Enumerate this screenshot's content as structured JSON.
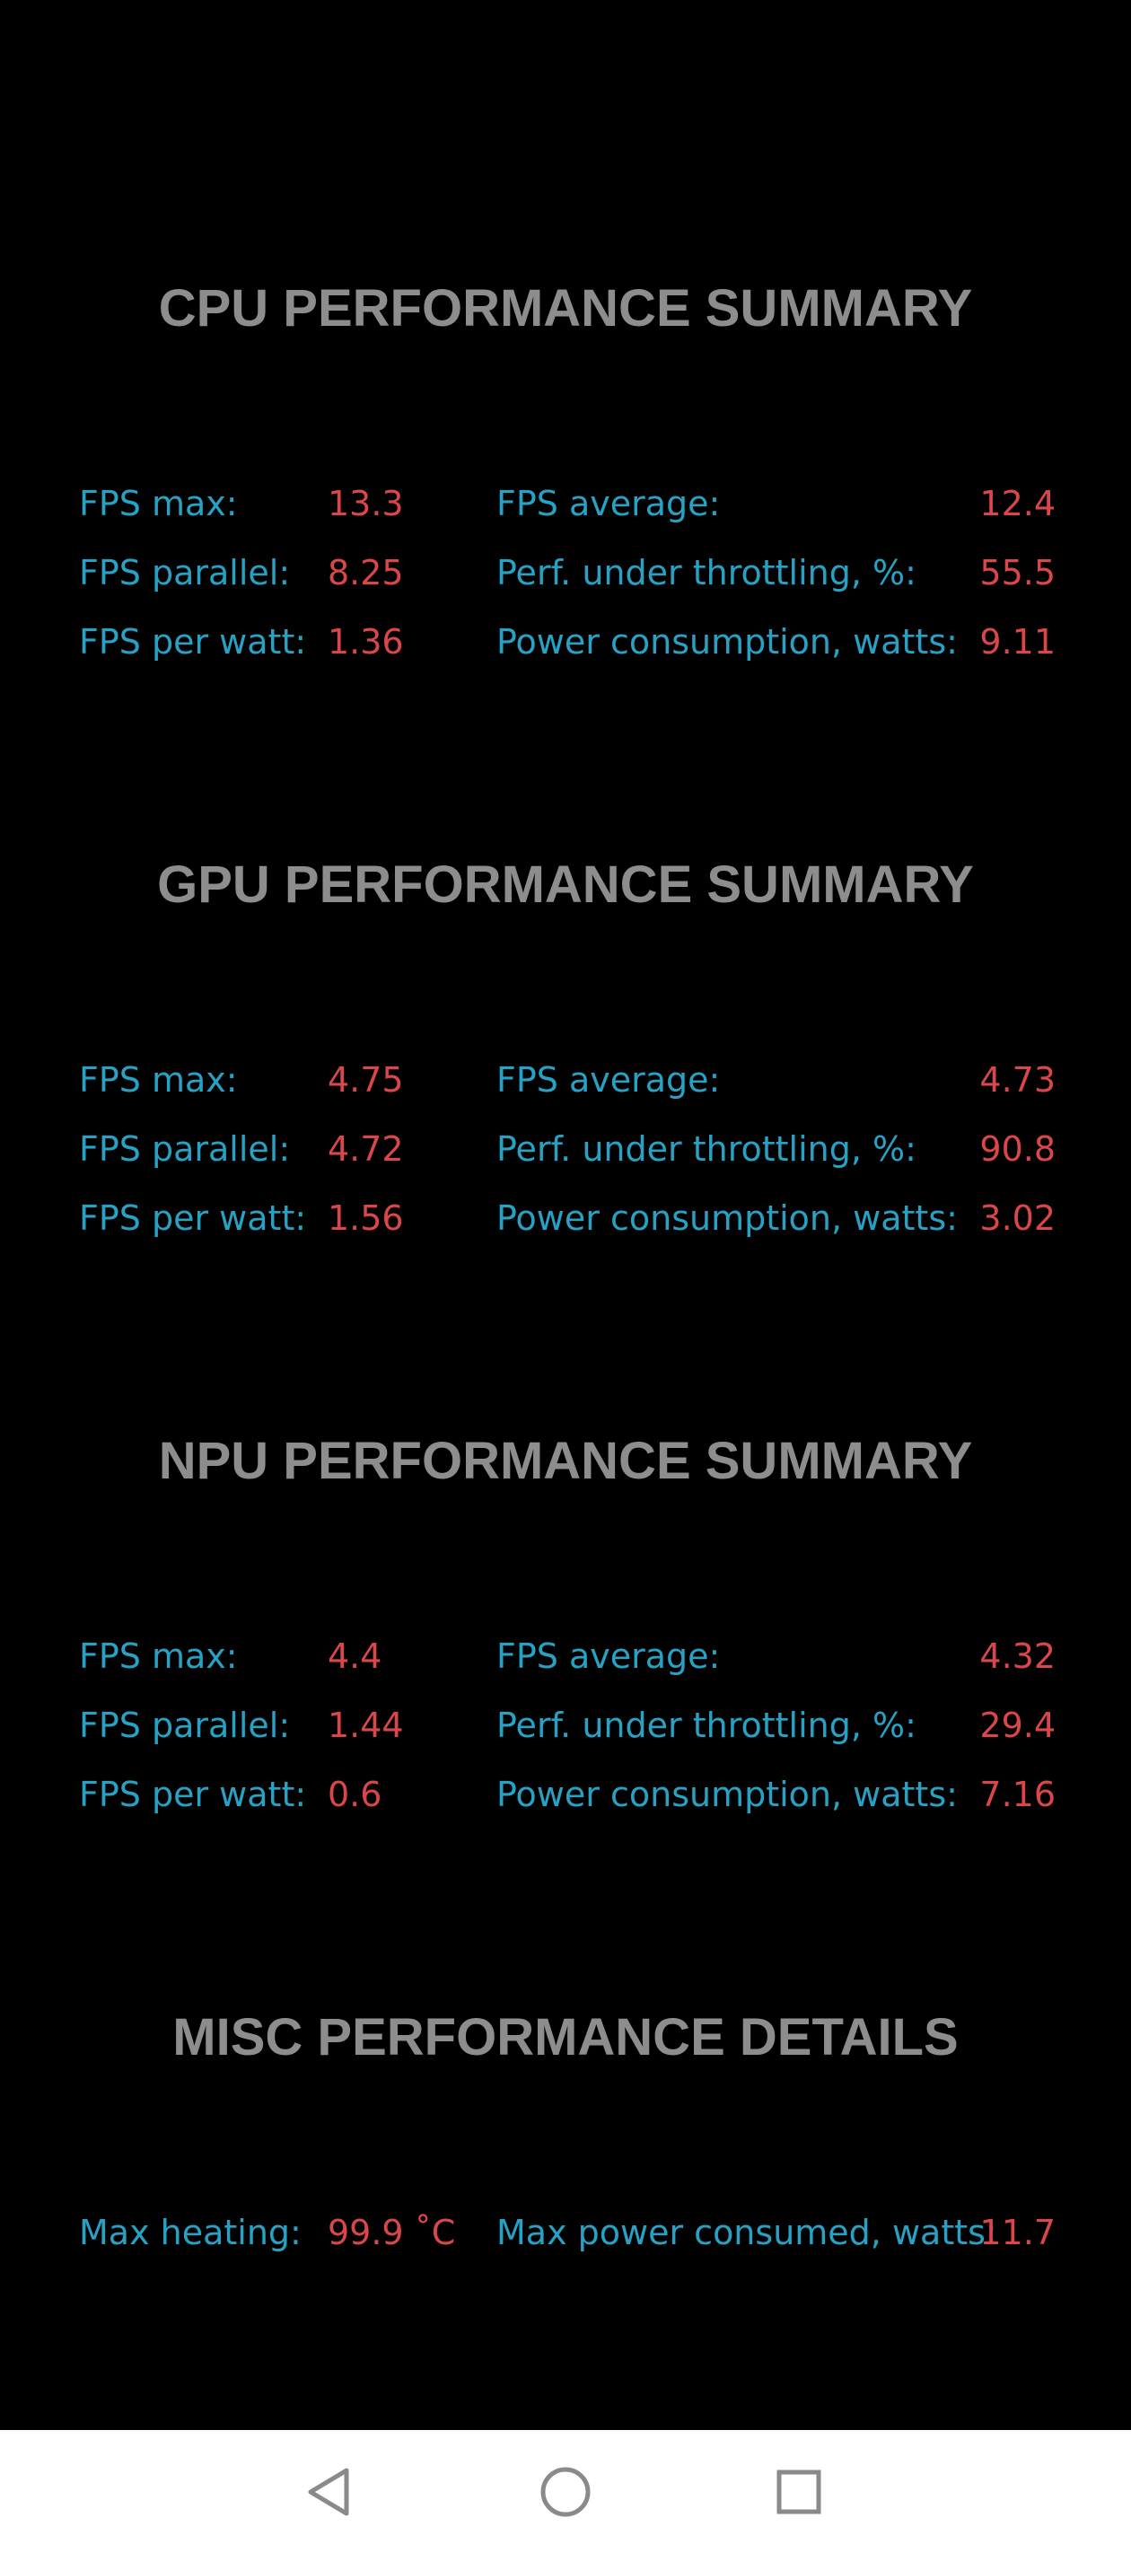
{
  "sections": [
    {
      "title": "CPU PERFORMANCE SUMMARY",
      "fps_max_label": "FPS max:",
      "fps_max": "13.3",
      "fps_parallel_label": "FPS parallel:",
      "fps_parallel": "8.25",
      "fps_per_watt_label": "FPS per watt:",
      "fps_per_watt": "1.36",
      "fps_average_label": "FPS average:",
      "fps_average": "12.4",
      "throttling_label": "Perf. under throttling, %:",
      "throttling": "55.5",
      "power_label": "Power consumption, watts:",
      "power": "9.11"
    },
    {
      "title": "GPU PERFORMANCE SUMMARY",
      "fps_max_label": "FPS max:",
      "fps_max": "4.75",
      "fps_parallel_label": "FPS parallel:",
      "fps_parallel": "4.72",
      "fps_per_watt_label": "FPS per watt:",
      "fps_per_watt": "1.56",
      "fps_average_label": "FPS average:",
      "fps_average": "4.73",
      "throttling_label": "Perf. under throttling, %:",
      "throttling": "90.8",
      "power_label": "Power consumption, watts:",
      "power": "3.02"
    },
    {
      "title": "NPU PERFORMANCE SUMMARY",
      "fps_max_label": "FPS max:",
      "fps_max": "4.4",
      "fps_parallel_label": "FPS parallel:",
      "fps_parallel": "1.44",
      "fps_per_watt_label": "FPS per watt:",
      "fps_per_watt": "0.6",
      "fps_average_label": "FPS average:",
      "fps_average": "4.32",
      "throttling_label": "Perf. under throttling, %:",
      "throttling": "29.4",
      "power_label": "Power consumption, watts:",
      "power": "7.16"
    }
  ],
  "misc": {
    "title": "MISC PERFORMANCE DETAILS",
    "max_heating_label": "Max heating:",
    "max_heating": "99.9 ˚C",
    "max_power_label": "Max power consumed, watts:",
    "max_power": "11.7"
  },
  "navbar": {
    "back_icon": "back-triangle-icon",
    "home_icon": "home-circle-icon",
    "recents_icon": "recents-square-icon"
  },
  "colors": {
    "background": "#000000",
    "title": "#8d8d8d",
    "label": "#27a2c4",
    "value": "#d9474a",
    "navbar": "#ffffff",
    "nav_icon": "#8a8a8a"
  }
}
